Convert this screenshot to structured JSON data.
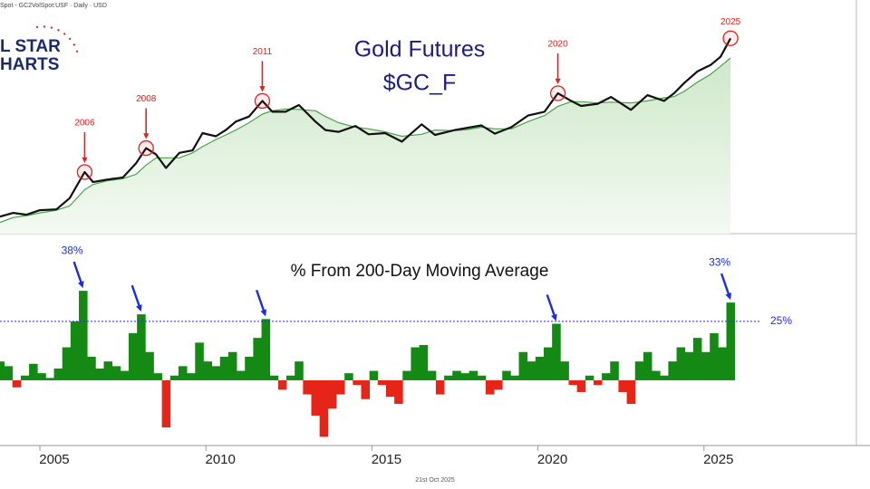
{
  "header": "Spot - GC2VolSpot:USF · Daily · USD",
  "logo": [
    "L STAR",
    "HARTS"
  ],
  "footer": "21st Oct 2025",
  "chart_data": [
    {
      "type": "line",
      "title": "Gold Futures",
      "subtitle": "$GC_F",
      "x": [
        2003.8,
        2004.2,
        2004.6,
        2005.0,
        2005.5,
        2005.9,
        2006.35,
        2006.6,
        2007.0,
        2007.5,
        2007.9,
        2008.2,
        2008.5,
        2008.8,
        2009.2,
        2009.6,
        2009.9,
        2010.3,
        2010.6,
        2010.9,
        2011.3,
        2011.7,
        2012.0,
        2012.4,
        2012.8,
        2013.3,
        2013.6,
        2014.0,
        2014.5,
        2014.9,
        2015.4,
        2015.9,
        2016.5,
        2016.9,
        2017.5,
        2017.9,
        2018.3,
        2018.7,
        2019.2,
        2019.7,
        2020.2,
        2020.6,
        2021.0,
        2021.3,
        2021.8,
        2022.2,
        2022.8,
        2023.3,
        2023.8,
        2024.1,
        2024.4,
        2024.8,
        2025.2,
        2025.5,
        2025.8
      ],
      "series": [
        {
          "color": "#111111",
          "values": [
            390,
            410,
            400,
            425,
            430,
            500,
            710,
            620,
            640,
            660,
            800,
            980,
            900,
            750,
            920,
            950,
            1200,
            1150,
            1250,
            1400,
            1500,
            1850,
            1600,
            1600,
            1750,
            1400,
            1250,
            1220,
            1320,
            1180,
            1200,
            1070,
            1350,
            1170,
            1250,
            1290,
            1330,
            1190,
            1300,
            1520,
            1600,
            2050,
            1850,
            1730,
            1780,
            1950,
            1640,
            2000,
            1850,
            2050,
            2350,
            2750,
            3000,
            3350,
            4300
          ]
        },
        {
          "color": "#4c9f4c",
          "fill": "#dcefd8",
          "values": [
            360,
            385,
            395,
            410,
            425,
            450,
            560,
            600,
            630,
            650,
            690,
            780,
            860,
            860,
            860,
            920,
            1000,
            1100,
            1170,
            1250,
            1380,
            1550,
            1620,
            1660,
            1650,
            1620,
            1500,
            1380,
            1300,
            1270,
            1220,
            1150,
            1180,
            1250,
            1240,
            1260,
            1300,
            1270,
            1270,
            1400,
            1520,
            1720,
            1830,
            1830,
            1800,
            1820,
            1800,
            1850,
            1930,
            1960,
            2100,
            2380,
            2650,
            2950,
            3300
          ]
        }
      ],
      "xlim": [
        2003.8,
        2030
      ],
      "ylim": [
        310,
        5640
      ],
      "log_scale": true,
      "annotation_color": "#e0201e",
      "annotations": [
        {
          "text": "2006",
          "x": 2006.35,
          "y": 710
        },
        {
          "text": "2008",
          "x": 2008.2,
          "y": 980
        },
        {
          "text": "2011",
          "x": 2011.7,
          "y": 1850
        },
        {
          "text": "2020",
          "x": 2020.6,
          "y": 2050
        },
        {
          "text": "2025",
          "x": 2025.8,
          "y": 4300,
          "arrow": false
        }
      ]
    },
    {
      "type": "bar",
      "title": "% From 200-Day Moving Average",
      "x": [
        2003.8,
        2004.05,
        2004.3,
        2004.55,
        2004.8,
        2005.05,
        2005.3,
        2005.55,
        2005.8,
        2006.05,
        2006.3,
        2006.55,
        2006.8,
        2007.05,
        2007.3,
        2007.55,
        2007.8,
        2008.05,
        2008.3,
        2008.55,
        2008.8,
        2009.05,
        2009.3,
        2009.55,
        2009.8,
        2010.05,
        2010.3,
        2010.55,
        2010.8,
        2011.05,
        2011.3,
        2011.55,
        2011.8,
        2012.05,
        2012.3,
        2012.55,
        2012.8,
        2013.05,
        2013.3,
        2013.55,
        2013.8,
        2014.05,
        2014.3,
        2014.55,
        2014.8,
        2015.05,
        2015.3,
        2015.55,
        2015.8,
        2016.05,
        2016.3,
        2016.55,
        2016.8,
        2017.05,
        2017.3,
        2017.55,
        2017.8,
        2018.05,
        2018.3,
        2018.55,
        2018.8,
        2019.05,
        2019.3,
        2019.55,
        2019.8,
        2020.05,
        2020.3,
        2020.55,
        2020.8,
        2021.05,
        2021.3,
        2021.55,
        2021.8,
        2022.05,
        2022.3,
        2022.55,
        2022.8,
        2023.05,
        2023.3,
        2023.55,
        2023.8,
        2024.05,
        2024.3,
        2024.55,
        2024.8,
        2025.05,
        2025.3,
        2025.55,
        2025.8
      ],
      "values": [
        8,
        6,
        -3,
        2,
        7,
        3,
        1,
        5,
        14,
        25,
        38,
        10,
        5,
        8,
        6,
        4,
        20,
        28,
        12,
        3,
        -20,
        2,
        6,
        3,
        16,
        8,
        6,
        10,
        12,
        4,
        10,
        18,
        26,
        2,
        -4,
        2,
        8,
        -6,
        -15,
        -24,
        -12,
        -6,
        3,
        -2,
        -8,
        4,
        -2,
        -7,
        -10,
        4,
        14,
        15,
        4,
        -6,
        2,
        4,
        3,
        4,
        2,
        -6,
        -4,
        4,
        2,
        12,
        8,
        10,
        14,
        24,
        8,
        -2,
        -5,
        2,
        -2,
        3,
        8,
        -5,
        -10,
        8,
        12,
        4,
        2,
        8,
        14,
        12,
        18,
        12,
        20,
        14,
        33
      ],
      "colors": {
        "positive": "#148a14",
        "negative": "#e62418"
      },
      "xlim": [
        2003.8,
        2030
      ],
      "xticks": [
        2005,
        2010,
        2015,
        2020,
        2025
      ],
      "ylim": [
        -27.7,
        61.5
      ],
      "reference_line": {
        "value": 25,
        "label": "25%",
        "color": "#2a2adf"
      },
      "annotation_color": "#1a2ee0",
      "annotations": [
        {
          "x": 2006.3,
          "value": 38,
          "text": "38%"
        },
        {
          "x": 2008.05,
          "value": 28
        },
        {
          "x": 2011.8,
          "value": 26
        },
        {
          "x": 2020.55,
          "value": 24
        },
        {
          "x": 2025.8,
          "value": 33,
          "text": "33%"
        }
      ]
    }
  ]
}
